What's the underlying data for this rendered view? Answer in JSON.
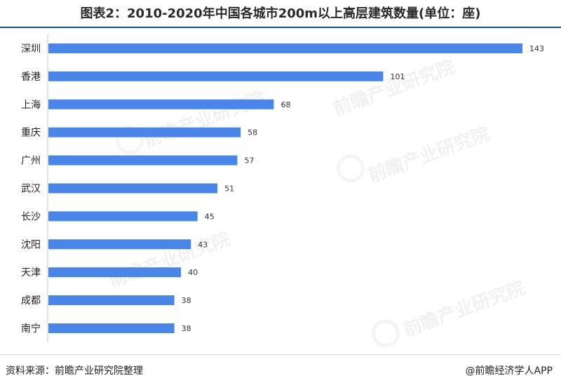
{
  "title": "图表2：2010-2020年中国各城市200m以上高层建筑数量(单位：座)",
  "source": "资料来源：前瞻产业研究院整理",
  "credit": "@前瞻经济学人APP",
  "watermark": "前瞻产业研究院",
  "colors": {
    "bar": "#4a86e8",
    "axis": "#c8c8c8",
    "rule": "#1f4e8c"
  },
  "chart_data": {
    "type": "bar",
    "orientation": "horizontal",
    "categories": [
      "深圳",
      "香港",
      "上海",
      "重庆",
      "广州",
      "武汉",
      "长沙",
      "沈阳",
      "天津",
      "成都",
      "南宁"
    ],
    "values": [
      143,
      101,
      68,
      58,
      57,
      51,
      45,
      43,
      40,
      38,
      38
    ],
    "xlim": [
      0,
      143
    ],
    "grid": false,
    "data_labels": true
  }
}
